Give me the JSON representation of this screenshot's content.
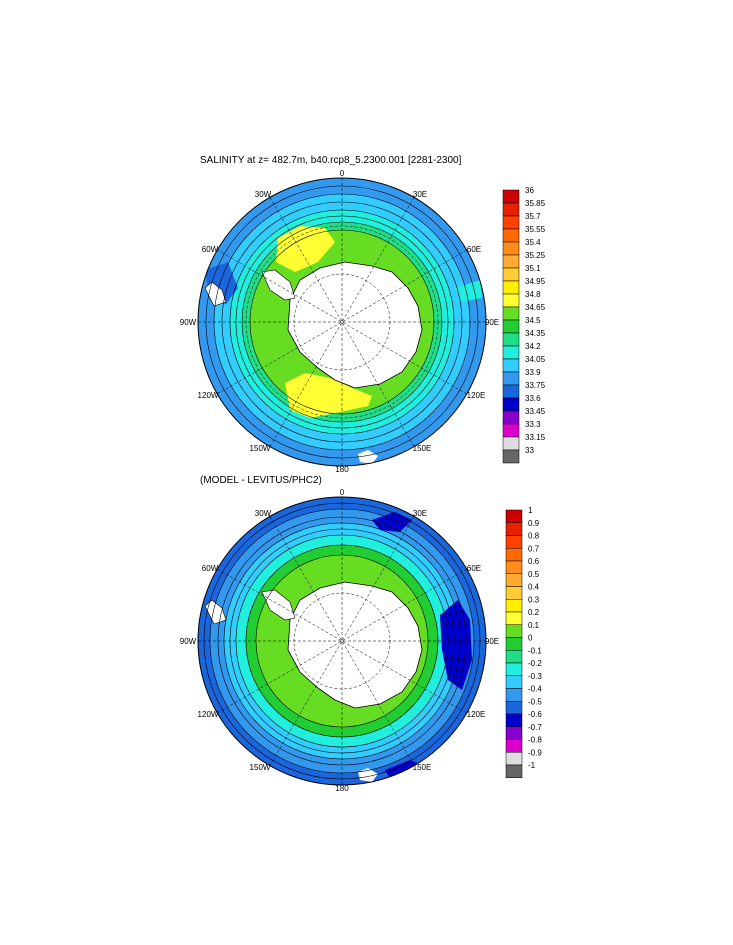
{
  "panels": [
    {
      "title": "SALINITY at z= 482.7m, b40.rcp8_5.2300.001 [2281-2300]",
      "lon_labels": [
        "0",
        "30E",
        "60E",
        "90E",
        "120E",
        "150E",
        "180",
        "150W",
        "120W",
        "90W",
        "60W",
        "30W"
      ],
      "colorbar_labels": [
        "36",
        "35.85",
        "35.7",
        "35.55",
        "35.4",
        "35.25",
        "35.1",
        "34.95",
        "34.8",
        "34.65",
        "34.5",
        "34.35",
        "34.2",
        "34.05",
        "33.9",
        "33.75",
        "33.6",
        "33.45",
        "33.3",
        "33.15",
        "33"
      ],
      "colorbar_colors": [
        "#cc0000",
        "#e82000",
        "#ff4000",
        "#ff6a00",
        "#ff8c1a",
        "#ffaa33",
        "#ffcc33",
        "#ffee00",
        "#ffff33",
        "#66dd22",
        "#22cc33",
        "#22dd88",
        "#22eedd",
        "#33ccff",
        "#3399ee",
        "#1a66dd",
        "#0000cc",
        "#8800cc",
        "#dd00cc",
        "#dddddd",
        "#666666"
      ]
    },
    {
      "title": "(MODEL - LEVITUS/PHC2)",
      "lon_labels": [
        "0",
        "30E",
        "60E",
        "90E",
        "120E",
        "150E",
        "180",
        "150W",
        "120W",
        "90W",
        "60W",
        "30W"
      ],
      "colorbar_labels": [
        "1",
        "0.9",
        "0.8",
        "0.7",
        "0.6",
        "0.5",
        "0.4",
        "0.3",
        "0.2",
        "0.1",
        "0",
        "-0.1",
        "-0.2",
        "-0.3",
        "-0.4",
        "-0.5",
        "-0.6",
        "-0.7",
        "-0.8",
        "-0.9",
        "-1"
      ],
      "colorbar_colors": [
        "#cc0000",
        "#e82000",
        "#ff4000",
        "#ff6a00",
        "#ff8c1a",
        "#ffaa33",
        "#ffcc33",
        "#ffee00",
        "#ffff33",
        "#66dd22",
        "#22cc33",
        "#22dd88",
        "#22eedd",
        "#33ccff",
        "#3399ee",
        "#1a66dd",
        "#0000cc",
        "#8800cc",
        "#dd00cc",
        "#dddddd",
        "#666666"
      ]
    }
  ]
}
